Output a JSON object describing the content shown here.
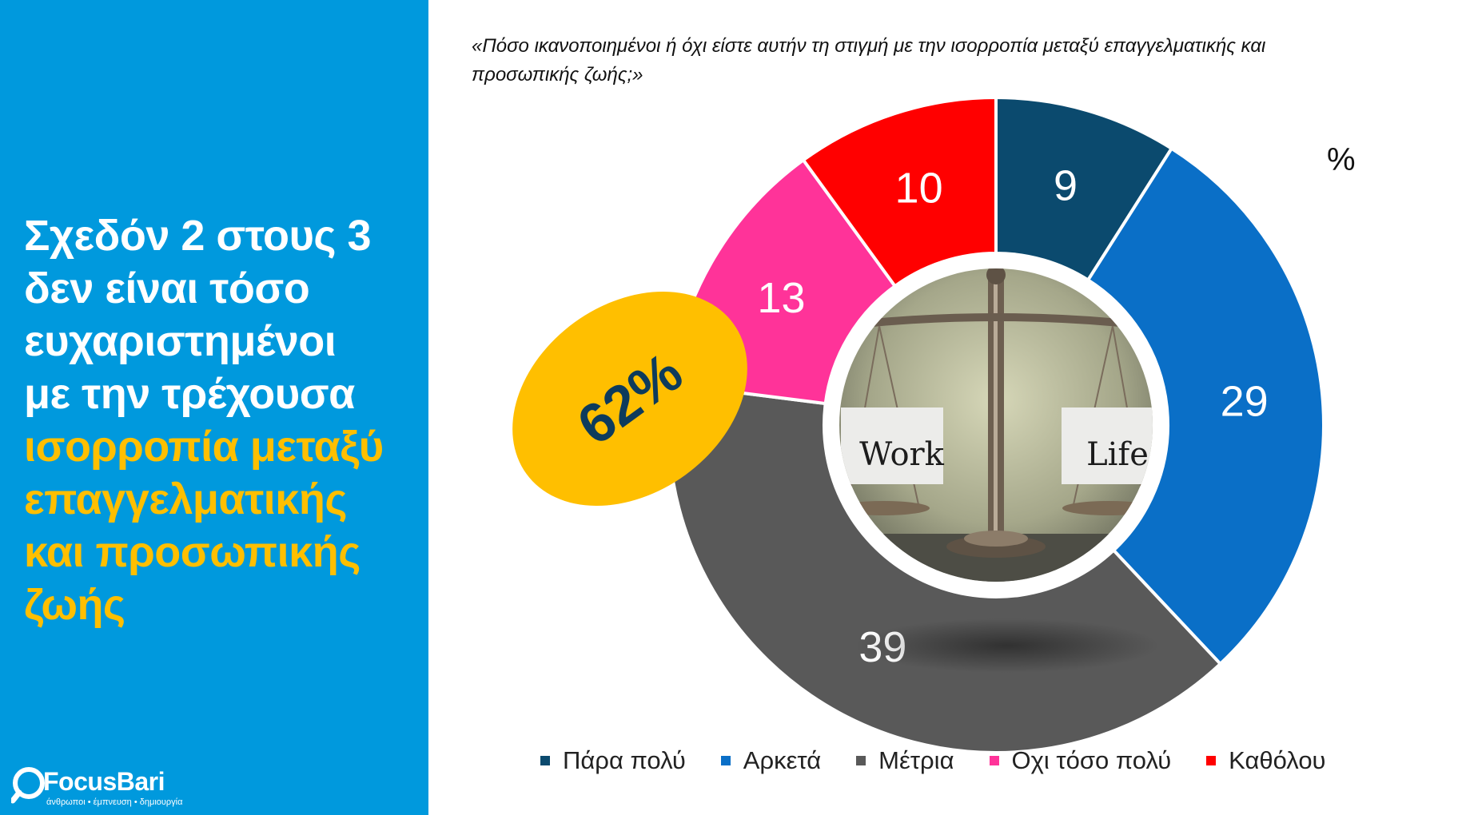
{
  "headline": {
    "lines_white": [
      "Σχεδόν 2 στους 3",
      "δεν είναι τόσο",
      "ευχαριστημένοι",
      "με την τρέχουσα"
    ],
    "lines_yellow": [
      "ισορροπία μεταξύ",
      "επαγγελματικής",
      "και προσωπικής",
      "ζωής"
    ]
  },
  "logo": {
    "name": "FocusBari",
    "tagline": "άνθρωποι • έμπνευση • δημιουργία"
  },
  "highlight_badge": {
    "value": "62%",
    "color": "#ffbf00",
    "text_color": "#0d3b5c"
  },
  "center_image": {
    "left_sign": "Work",
    "right_sign": "Life",
    "icon": "balance-scale-icon"
  },
  "chart_data": {
    "type": "pie",
    "title": "«Πόσο ικανοποιημένοι ή όχι είστε αυτήν τη στιγμή με την ισορροπία μεταξύ επαγγελματικής και προσωπικής ζωής;»",
    "unit": "%",
    "categories": [
      "Πάρα πολύ",
      "Αρκετά",
      "Μέτρια",
      "Οχι τόσο πολύ",
      "Καθόλου"
    ],
    "values": [
      9,
      29,
      39,
      13,
      10
    ],
    "colors": [
      "#0b4a6e",
      "#0a6fc7",
      "#595959",
      "#ff3399",
      "#ff0000"
    ],
    "legend_position": "bottom",
    "donut": true
  }
}
